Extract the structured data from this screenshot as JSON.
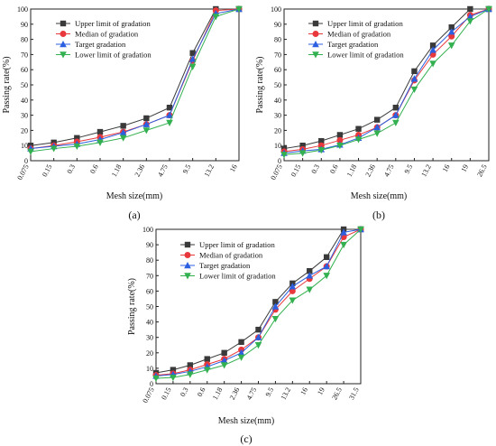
{
  "chart_data": [
    {
      "type": "line",
      "panel_label": "(a)",
      "xlabel": "Mesh size(mm)",
      "ylabel": "Passing rate(%)",
      "categories": [
        "0.075",
        "0.15",
        "0.3",
        "0.6",
        "1.18",
        "2.36",
        "4.75",
        "9.5",
        "13.2",
        "16"
      ],
      "ylim": [
        0,
        100
      ],
      "yticks": [
        0,
        10,
        20,
        30,
        40,
        50,
        60,
        70,
        80,
        90,
        100
      ],
      "legend_position": "top-left",
      "series": [
        {
          "name": "Upper limit of gradation",
          "marker": "square",
          "color": "#3a3a3a",
          "values": [
            10,
            12,
            15,
            19,
            23,
            28,
            35,
            71,
            100,
            100
          ]
        },
        {
          "name": "Median of gradation",
          "marker": "circle",
          "color": "#e8383c",
          "values": [
            8,
            10,
            12.5,
            15.5,
            19,
            24,
            30,
            66,
            99,
            100
          ]
        },
        {
          "name": "Target gradation",
          "marker": "triangle-up",
          "color": "#2b5fe0",
          "values": [
            8,
            9.5,
            11,
            14,
            18.5,
            24,
            30,
            67,
            97,
            100
          ]
        },
        {
          "name": "Lower limit of gradation",
          "marker": "triangle-down",
          "color": "#33b04f",
          "values": [
            6,
            8,
            9.5,
            12,
            15,
            20,
            25,
            62,
            95,
            100
          ]
        }
      ]
    },
    {
      "type": "line",
      "panel_label": "(b)",
      "xlabel": "Mesh size(mm)",
      "ylabel": "Passing rate(%)",
      "categories": [
        "0.075",
        "0.15",
        "0.3",
        "0.6",
        "1.18",
        "2.36",
        "4.75",
        "9.5",
        "13.2",
        "16",
        "19",
        "26.5"
      ],
      "ylim": [
        0,
        100
      ],
      "yticks": [
        0,
        10,
        20,
        30,
        40,
        50,
        60,
        70,
        80,
        90,
        100
      ],
      "legend_position": "top-left",
      "series": [
        {
          "name": "Upper limit of gradation",
          "marker": "square",
          "color": "#3a3a3a",
          "values": [
            8,
            10,
            13,
            17,
            21,
            27,
            35,
            59,
            76,
            88,
            100,
            100
          ]
        },
        {
          "name": "Median of gradation",
          "marker": "circle",
          "color": "#e8383c",
          "values": [
            6,
            7.5,
            10,
            13.5,
            17,
            22,
            30,
            53,
            70,
            82,
            96,
            100
          ]
        },
        {
          "name": "Target gradation",
          "marker": "triangle-up",
          "color": "#2b5fe0",
          "values": [
            5,
            6.5,
            7.5,
            10.5,
            15,
            22,
            30,
            54,
            73,
            85,
            95,
            100
          ]
        },
        {
          "name": "Lower limit of gradation",
          "marker": "triangle-down",
          "color": "#33b04f",
          "values": [
            4,
            5,
            7,
            10,
            14,
            18,
            25,
            47,
            64,
            76,
            92,
            100
          ]
        }
      ]
    },
    {
      "type": "line",
      "panel_label": "(c)",
      "xlabel": "Mesh size(mm)",
      "ylabel": "Passing rate(%)",
      "categories": [
        "0.075",
        "0.15",
        "0.3",
        "0.6",
        "1.18",
        "2.36",
        "4.75",
        "9.5",
        "13.2",
        "16",
        "19",
        "26.5",
        "31.5"
      ],
      "ylim": [
        0,
        100
      ],
      "yticks": [
        0,
        10,
        20,
        30,
        40,
        50,
        60,
        70,
        80,
        90,
        100
      ],
      "legend_position": "top-left",
      "series": [
        {
          "name": "Upper limit of gradation",
          "marker": "square",
          "color": "#3a3a3a",
          "values": [
            7,
            9,
            12,
            16,
            20,
            27,
            35,
            53,
            65,
            73,
            82,
            100,
            100
          ]
        },
        {
          "name": "Median of gradation",
          "marker": "circle",
          "color": "#e8383c",
          "values": [
            5.5,
            6.5,
            9,
            12.5,
            16,
            22,
            30,
            48,
            60,
            68,
            76,
            95,
            100
          ]
        },
        {
          "name": "Target gradation",
          "marker": "triangle-up",
          "color": "#2b5fe0",
          "values": [
            5,
            6,
            8,
            11,
            15,
            20,
            30,
            50,
            63,
            70,
            76,
            98,
            100
          ]
        },
        {
          "name": "Lower limit of gradation",
          "marker": "triangle-down",
          "color": "#33b04f",
          "values": [
            3.5,
            4,
            6,
            9,
            12,
            17,
            25,
            42,
            54,
            61,
            70,
            90,
            100
          ]
        }
      ]
    }
  ]
}
